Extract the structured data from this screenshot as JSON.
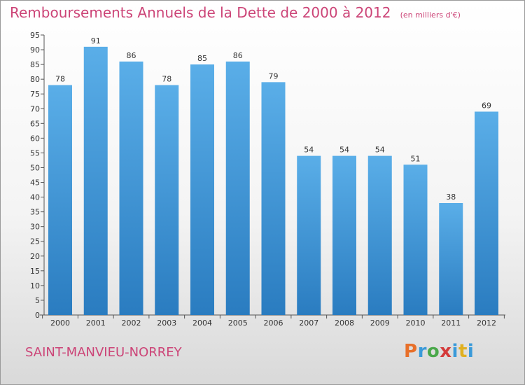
{
  "header": {
    "title": "Remboursements Annuels de la Dette de 2000 à 2012",
    "subtitle": "(en milliers d'€)"
  },
  "footer": {
    "commune": "SAINT-MANVIEU-NORREY",
    "logo": "Proxiti"
  },
  "colors": {
    "bar_light": "#5aaee8",
    "bar_dark": "#2a7cc0",
    "title": "#cc4477",
    "logo_letters": [
      "#e8702a",
      "#3a9ad9",
      "#4aa84a",
      "#d43a3a",
      "#3a9ad9",
      "#e0b020",
      "#3a9ad9"
    ]
  },
  "chart_data": {
    "type": "bar",
    "title": "Remboursements Annuels de la Dette de 2000 à 2012",
    "subtitle": "(en milliers d'€)",
    "categories": [
      "2000",
      "2001",
      "2002",
      "2003",
      "2004",
      "2005",
      "2006",
      "2007",
      "2008",
      "2009",
      "2010",
      "2011",
      "2012"
    ],
    "values": [
      78,
      91,
      86,
      78,
      85,
      86,
      79,
      54,
      54,
      54,
      51,
      38,
      69
    ],
    "xlabel": "",
    "ylabel": "",
    "ylim": [
      0,
      95
    ],
    "yticks": [
      0,
      5,
      10,
      15,
      20,
      25,
      30,
      35,
      40,
      45,
      50,
      55,
      60,
      65,
      70,
      75,
      80,
      85,
      90,
      95
    ],
    "grid": false
  }
}
